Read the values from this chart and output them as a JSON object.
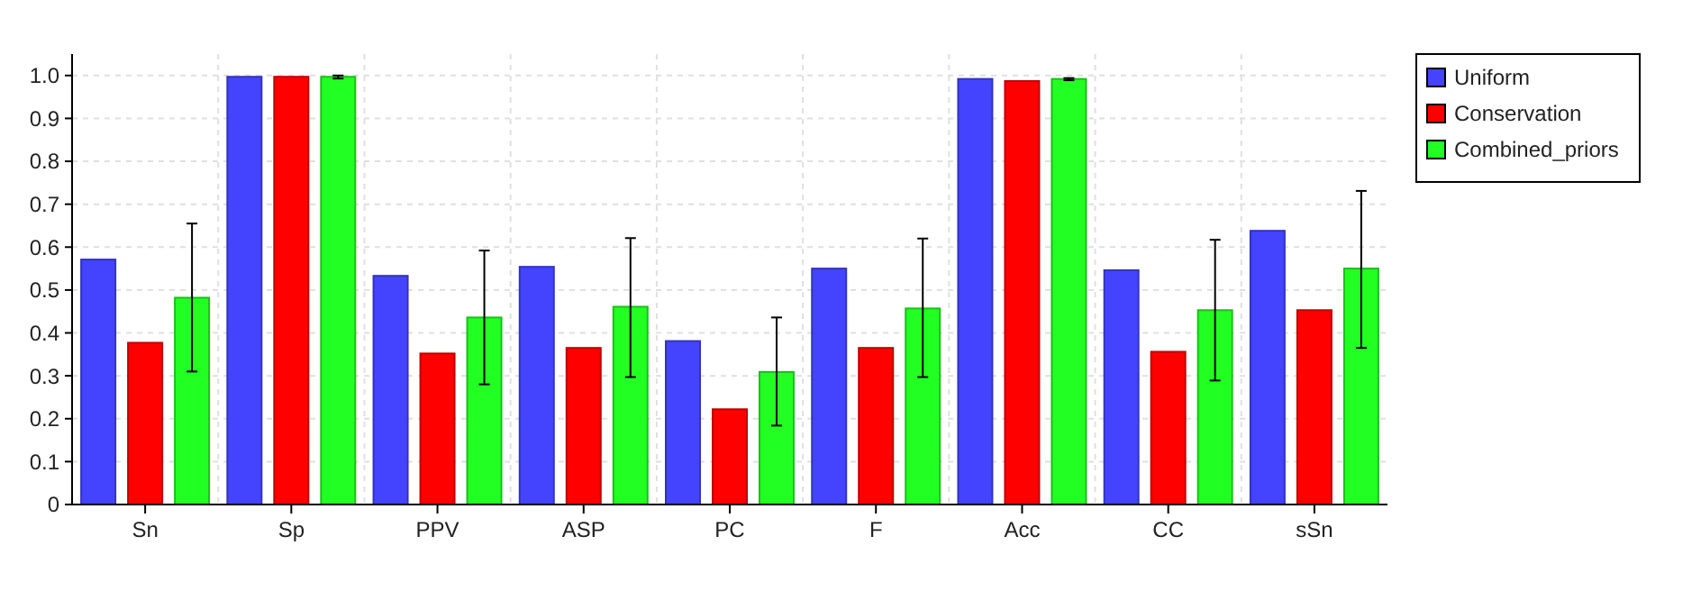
{
  "chart_data": {
    "type": "bar",
    "categories": [
      "Sn",
      "Sp",
      "PPV",
      "ASP",
      "PC",
      "F",
      "Acc",
      "CC",
      "sSn"
    ],
    "series": [
      {
        "name": "Uniform",
        "color": "#4444ff",
        "values": [
          0.571,
          0.997,
          0.533,
          0.554,
          0.381,
          0.55,
          0.992,
          0.546,
          0.638
        ]
      },
      {
        "name": "Conservation",
        "color": "#ff0000",
        "values": [
          0.377,
          0.997,
          0.352,
          0.365,
          0.222,
          0.365,
          0.987,
          0.356,
          0.453
        ]
      },
      {
        "name": "Combined_priors",
        "color": "#22ff22",
        "values": [
          0.482,
          0.997,
          0.436,
          0.461,
          0.309,
          0.457,
          0.992,
          0.453,
          0.55
        ],
        "errors": [
          [
            0.31,
            0.655
          ],
          [
            0.993,
            1.0
          ],
          [
            0.28,
            0.592
          ],
          [
            0.297,
            0.621
          ],
          [
            0.184,
            0.436
          ],
          [
            0.297,
            0.62
          ],
          [
            0.989,
            0.994
          ],
          [
            0.289,
            0.617
          ],
          [
            0.365,
            0.731
          ]
        ]
      }
    ],
    "ylim": [
      0,
      1.05
    ],
    "yticks": [
      0,
      0.1,
      0.2,
      0.3,
      0.4,
      0.5,
      0.6,
      0.7,
      0.8,
      0.9,
      {
        "value": 1,
        "label": "1.0"
      }
    ],
    "grid": true,
    "legend": "top right"
  }
}
